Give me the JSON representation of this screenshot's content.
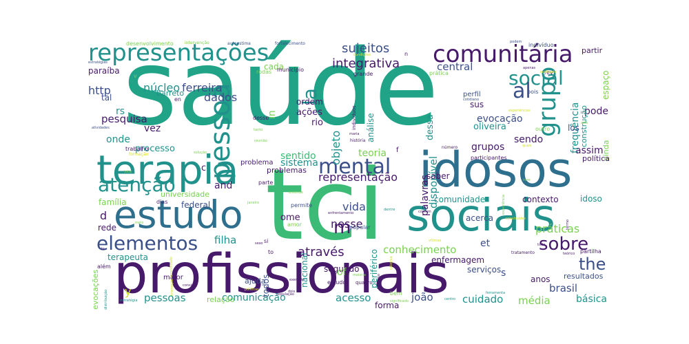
{
  "palette": {
    "dark_purple": "#46196a",
    "indigo": "#3b4f8a",
    "steel_blue": "#2f6f8e",
    "teal": "#21918c",
    "sea_green": "#20a386",
    "green": "#3bbb75",
    "lime": "#7ad151",
    "yellow": "#c8dd2a",
    "gold": "#d4e02a"
  },
  "words": [
    {
      "text": "saúde",
      "weight": 10,
      "color": "sea_green"
    },
    {
      "text": "tci",
      "weight": 9.5,
      "color": "green"
    },
    {
      "text": "profissionais",
      "weight": 8,
      "color": "dark_purple"
    },
    {
      "text": "idosos",
      "weight": 6,
      "color": "steel_blue"
    },
    {
      "text": "sociais",
      "weight": 5.5,
      "color": "teal"
    },
    {
      "text": "terapia",
      "weight": 5,
      "color": "teal"
    },
    {
      "text": "estudo",
      "weight": 5,
      "color": "steel_blue"
    },
    {
      "text": "representações",
      "weight": 3.5,
      "color": "teal"
    },
    {
      "text": "comunitária",
      "weight": 3.2,
      "color": "dark_purple"
    },
    {
      "text": "pessoa",
      "weight": 3,
      "color": "teal"
    },
    {
      "text": "mental",
      "weight": 2.8,
      "color": "indigo"
    },
    {
      "text": "atenção",
      "weight": 2.8,
      "color": "teal"
    },
    {
      "text": "elementos",
      "weight": 2.6,
      "color": "indigo"
    },
    {
      "text": "grupo",
      "weight": 2.5,
      "color": "teal"
    },
    {
      "text": "social",
      "weight": 2.4,
      "color": "teal"
    },
    {
      "text": "sobre",
      "weight": 2.3,
      "color": "dark_purple"
    },
    {
      "text": "al",
      "weight": 2.2,
      "color": "indigo"
    },
    {
      "text": "la",
      "weight": 2.2,
      "color": "teal"
    },
    {
      "text": "m",
      "weight": 2,
      "color": "dark_purple"
    },
    {
      "text": "the",
      "weight": 2,
      "color": "indigo"
    },
    {
      "text": "sujeitos",
      "weight": 1.6,
      "color": "indigo"
    },
    {
      "text": "integrativa",
      "weight": 1.6,
      "color": "dark_purple"
    },
    {
      "text": "núcleo",
      "weight": 1.5,
      "color": "teal"
    },
    {
      "text": "ferreira",
      "weight": 1.5,
      "color": "indigo"
    },
    {
      "text": "dados",
      "weight": 1.5,
      "color": "indigo"
    },
    {
      "text": "central",
      "weight": 1.4,
      "color": "indigo"
    },
    {
      "text": "objeto",
      "weight": 1.4,
      "color": "teal"
    },
    {
      "text": "disponível",
      "weight": 1.4,
      "color": "teal"
    },
    {
      "text": "representação",
      "weight": 1.4,
      "color": "dark_purple"
    },
    {
      "text": "and",
      "weight": 1.4,
      "color": "dark_purple"
    },
    {
      "text": "vida",
      "weight": 1.4,
      "color": "indigo"
    },
    {
      "text": "nesse",
      "weight": 1.4,
      "color": "dark_purple"
    },
    {
      "text": "práticas",
      "weight": 1.4,
      "color": "lime"
    },
    {
      "text": "conhecimento",
      "weight": 1.4,
      "color": "lime"
    },
    {
      "text": "através",
      "weight": 1.4,
      "color": "dark_purple"
    },
    {
      "text": "filha",
      "weight": 1.4,
      "color": "teal"
    },
    {
      "text": "pessoas",
      "weight": 1.3,
      "color": "teal"
    },
    {
      "text": "comunicação",
      "weight": 1.3,
      "color": "teal"
    },
    {
      "text": "acesso",
      "weight": 1.3,
      "color": "teal"
    },
    {
      "text": "cuidado",
      "weight": 1.3,
      "color": "teal"
    },
    {
      "text": "brasil",
      "weight": 1.3,
      "color": "indigo"
    },
    {
      "text": "média",
      "weight": 1.3,
      "color": "lime"
    },
    {
      "text": "básica",
      "weight": 1.3,
      "color": "teal"
    },
    {
      "text": "pesquisa",
      "weight": 1.3,
      "color": "dark_purple"
    },
    {
      "text": "vez",
      "weight": 1.3,
      "color": "dark_purple"
    },
    {
      "text": "onde",
      "weight": 1.2,
      "color": "teal"
    },
    {
      "text": "processo",
      "weight": 1.2,
      "color": "teal"
    },
    {
      "text": "sentido",
      "weight": 1.2,
      "color": "green"
    },
    {
      "text": "teoria",
      "weight": 1.2,
      "color": "lime"
    },
    {
      "text": "grupos",
      "weight": 1.2,
      "color": "dark_purple"
    },
    {
      "text": "sendo",
      "weight": 1.2,
      "color": "dark_purple"
    },
    {
      "text": "assim",
      "weight": 1.2,
      "color": "dark_purple"
    },
    {
      "text": "evocação",
      "weight": 1.2,
      "color": "indigo"
    },
    {
      "text": "oliveira",
      "weight": 1.2,
      "color": "teal"
    },
    {
      "text": "pode",
      "weight": 1.2,
      "color": "dark_purple"
    },
    {
      "text": "sistema",
      "weight": 1.2,
      "color": "teal"
    },
    {
      "text": "problemas",
      "weight": 1.1,
      "color": "dark_purple"
    },
    {
      "text": "comunidade",
      "weight": 1.2,
      "color": "teal"
    },
    {
      "text": "universidade",
      "weight": 1.1,
      "color": "lime"
    },
    {
      "text": "federal",
      "weight": 1.1,
      "color": "indigo"
    },
    {
      "text": "família",
      "weight": 1.1,
      "color": "lime"
    },
    {
      "text": "rede",
      "weight": 1.1,
      "color": "dark_purple"
    },
    {
      "text": "terapeuta",
      "weight": 1.1,
      "color": "teal"
    },
    {
      "text": "enfermagem",
      "weight": 1.1,
      "color": "dark_purple"
    },
    {
      "text": "serviços",
      "weight": 1.1,
      "color": "indigo"
    },
    {
      "text": "segundo",
      "weight": 1.1,
      "color": "dark_purple"
    },
    {
      "text": "joão",
      "weight": 1.1,
      "color": "indigo"
    },
    {
      "text": "anos",
      "weight": 1.1,
      "color": "dark_purple"
    },
    {
      "text": "resultados",
      "weight": 1.0,
      "color": "indigo"
    },
    {
      "text": "forma",
      "weight": 1.0,
      "color": "dark_purple"
    },
    {
      "text": "relação",
      "weight": 1.0,
      "color": "lime"
    },
    {
      "text": "acerca",
      "weight": 1.0,
      "color": "indigo"
    },
    {
      "text": "contexto",
      "weight": 1.0,
      "color": "dark_purple"
    },
    {
      "text": "idoso",
      "weight": 1.0,
      "color": "teal"
    },
    {
      "text": "ome",
      "weight": 1.0,
      "color": "dark_purple"
    },
    {
      "text": "frequência",
      "weight": 1.1,
      "color": "teal"
    },
    {
      "text": "construção",
      "weight": 1.0,
      "color": "teal"
    },
    {
      "text": "los",
      "weight": 1.0,
      "color": "indigo"
    },
    {
      "text": "espaço",
      "weight": 1.0,
      "color": "lime"
    },
    {
      "text": "ainda",
      "weight": 1.0,
      "color": "lime"
    },
    {
      "text": "política",
      "weight": 0.9,
      "color": "dark_purple"
    },
    {
      "text": "partir",
      "weight": 1.0,
      "color": "dark_purple"
    },
    {
      "text": "perfil",
      "weight": 0.9,
      "color": "indigo"
    },
    {
      "text": "sus",
      "weight": 1.0,
      "color": "dark_purple"
    },
    {
      "text": "dessa",
      "weight": 1.0,
      "color": "teal"
    },
    {
      "text": "análise",
      "weight": 1.0,
      "color": "teal"
    },
    {
      "text": "ações",
      "weight": 1.0,
      "color": "dark_purple"
    },
    {
      "text": "ordem",
      "weight": 1.0,
      "color": "dark_purple"
    },
    {
      "text": "rio",
      "weight": 1.0,
      "color": "dark_purple"
    },
    {
      "text": "in",
      "weight": 1.0,
      "color": "lime"
    },
    {
      "text": "rs",
      "weight": 1.0,
      "color": "teal"
    },
    {
      "text": "http",
      "weight": 1.1,
      "color": "indigo"
    },
    {
      "text": "tal",
      "weight": 1.0,
      "color": "indigo"
    },
    {
      "text": "barreto",
      "weight": 0.9,
      "color": "teal"
    },
    {
      "text": "paraíba",
      "weight": 0.9,
      "color": "dark_purple"
    },
    {
      "text": "cada",
      "weight": 0.9,
      "color": "lime"
    },
    {
      "text": "palavras",
      "weight": 1.1,
      "color": "dark_purple"
    },
    {
      "text": "saber",
      "weight": 1.0,
      "color": "dark_purple"
    },
    {
      "text": "nacional",
      "weight": 1.0,
      "color": "teal"
    },
    {
      "text": "periférico",
      "weight": 1.0,
      "color": "teal"
    },
    {
      "text": "of",
      "weight": 1.0,
      "color": "lime"
    },
    {
      "text": "s",
      "weight": 1.0,
      "color": "indigo"
    },
    {
      "text": "et",
      "weight": 1.0,
      "color": "indigo"
    },
    {
      "text": "todos",
      "weight": 0.9,
      "color": "indigo"
    },
    {
      "text": "ajuda",
      "weight": 0.8,
      "color": "indigo"
    },
    {
      "text": "maior",
      "weight": 0.8,
      "color": "dark_purple"
    },
    {
      "text": "y",
      "weight": 1.0,
      "color": "yellow"
    },
    {
      "text": "d",
      "weight": 1.0,
      "color": "dark_purple"
    },
    {
      "text": "c",
      "weight": 0.9,
      "color": "dark_purple"
    },
    {
      "text": "problema",
      "weight": 0.9,
      "color": "dark_purple"
    },
    {
      "text": "evocações",
      "weight": 0.8,
      "color": "lime"
    },
    {
      "text": "desenvolvimento",
      "weight": 0.7,
      "color": "lime"
    },
    {
      "text": "intervenção",
      "weight": 0.5,
      "color": "lime"
    },
    {
      "text": "autoestima",
      "weight": 0.5,
      "color": "indigo"
    },
    {
      "text": "fortalecimento",
      "weight": 0.5,
      "color": "indigo"
    },
    {
      "text": "podem",
      "weight": 0.4,
      "color": "indigo"
    },
    {
      "text": "indivíduo",
      "weight": 0.6,
      "color": "indigo"
    },
    {
      "text": "município",
      "weight": 0.5,
      "color": "dark_purple"
    },
    {
      "text": "grande",
      "weight": 0.5,
      "color": "dark_purple"
    },
    {
      "text": "prática",
      "weight": 0.5,
      "color": "lime"
    },
    {
      "text": "estratégias",
      "weight": 0.4,
      "color": "indigo"
    },
    {
      "text": "trabalho",
      "weight": 0.5,
      "color": "dark_purple"
    },
    {
      "text": "atividades",
      "weight": 0.4,
      "color": "indigo"
    },
    {
      "text": "formação",
      "weight": 0.4,
      "color": "gold"
    },
    {
      "text": "desse",
      "weight": 0.6,
      "color": "dark_purple"
    },
    {
      "text": "tanto",
      "weight": 0.4,
      "color": "lime"
    },
    {
      "text": "reunião",
      "weight": 0.4,
      "color": "lime"
    },
    {
      "text": "maria",
      "weight": 0.4,
      "color": "dark_purple"
    },
    {
      "text": "história",
      "weight": 0.5,
      "color": "dark_purple"
    },
    {
      "text": "indivíduos",
      "weight": 0.5,
      "color": "dark_purple"
    },
    {
      "text": "participantes",
      "weight": 0.6,
      "color": "dark_purple"
    },
    {
      "text": "número",
      "weight": 0.5,
      "color": "dark_purple"
    },
    {
      "text": "outro",
      "weight": 0.5,
      "color": "lime"
    },
    {
      "text": "arte",
      "weight": 0.4,
      "color": "lime"
    },
    {
      "text": "cotidiano",
      "weight": 0.4,
      "color": "indigo"
    },
    {
      "text": "pois",
      "weight": 0.5,
      "color": "indigo"
    },
    {
      "text": "rev",
      "weight": 0.5,
      "color": "dark_purple"
    },
    {
      "text": "total",
      "weight": 0.4,
      "color": "lime"
    },
    {
      "text": "dias",
      "weight": 0.5,
      "color": "dark_purple"
    },
    {
      "text": "parte",
      "weight": 0.5,
      "color": "dark_purple"
    },
    {
      "text": "janeiro",
      "weight": 0.4,
      "color": "lime"
    },
    {
      "text": "entende",
      "weight": 0.4,
      "color": "lime"
    },
    {
      "text": "permite",
      "weight": 0.5,
      "color": "indigo"
    },
    {
      "text": "enfrentamento",
      "weight": 0.4,
      "color": "dark_purple"
    },
    {
      "text": "popular",
      "weight": 0.5,
      "color": "indigo"
    },
    {
      "text": "comum",
      "weight": 0.4,
      "color": "dark_purple"
    },
    {
      "text": "dentre",
      "weight": 0.4,
      "color": "teal"
    },
    {
      "text": "amor",
      "weight": 0.5,
      "color": "lime"
    },
    {
      "text": "meio",
      "weight": 0.4,
      "color": "lime"
    },
    {
      "text": "sexo",
      "weight": 0.4,
      "color": "dark_purple"
    },
    {
      "text": "partilha",
      "weight": 0.6,
      "color": "dark_purple"
    },
    {
      "text": "tratamento",
      "weight": 0.5,
      "color": "dark_purple"
    },
    {
      "text": "teórico",
      "weight": 0.4,
      "color": "dark_purple"
    },
    {
      "text": "estudos",
      "weight": 0.5,
      "color": "dark_purple"
    },
    {
      "text": "exemplo",
      "weight": 0.4,
      "color": "dark_purple"
    },
    {
      "text": "quadro",
      "weight": 0.5,
      "color": "dark_purple"
    },
    {
      "text": "bem",
      "weight": 0.5,
      "color": "lime"
    },
    {
      "text": "significado",
      "weight": 0.4,
      "color": "lime"
    },
    {
      "text": "centro",
      "weight": 0.4,
      "color": "teal"
    },
    {
      "text": "ferramenta",
      "weight": 0.4,
      "color": "teal"
    },
    {
      "text": "população",
      "weight": 0.4,
      "color": "dark_purple"
    },
    {
      "text": "estratégia",
      "weight": 0.4,
      "color": "teal"
    },
    {
      "text": "distribuição",
      "weight": 0.4,
      "color": "teal"
    },
    {
      "text": "consiste",
      "weight": 0.4,
      "color": "dark_purple"
    },
    {
      "text": "além",
      "weight": 0.5,
      "color": "dark_purple"
    },
    {
      "text": "tc",
      "weight": 0.4,
      "color": "dark_purple"
    },
    {
      "text": "dois",
      "weight": 0.4,
      "color": "dark_purple"
    },
    {
      "text": "maioria",
      "weight": 0.4,
      "color": "lime"
    },
    {
      "text": "rodas",
      "weight": 0.5,
      "color": "lime"
    },
    {
      "text": "solução",
      "weight": 0.4,
      "color": "lime"
    },
    {
      "text": "experiência",
      "weight": 0.4,
      "color": "lime"
    },
    {
      "text": "livre",
      "weight": 0.4,
      "color": "lime"
    },
    {
      "text": "termo",
      "weight": 0.4,
      "color": "dark_purple"
    },
    {
      "text": "todo",
      "weight": 0.4,
      "color": "dark_purple"
    },
    {
      "text": "apenas",
      "weight": 0.4,
      "color": "dark_purple"
    },
    {
      "text": "realidade",
      "weight": 0.4,
      "color": "gold"
    },
    {
      "text": "condições",
      "weight": 0.4,
      "color": "gold"
    },
    {
      "text": "experiências",
      "weight": 0.4,
      "color": "gold"
    },
    {
      "text": "construídas",
      "weight": 0.4,
      "color": "gold"
    },
    {
      "text": "vítimas",
      "weight": 0.4,
      "color": "gold"
    },
    {
      "text": "políticas",
      "weight": 0.4,
      "color": "gold"
    },
    {
      "text": "aprendizado",
      "weight": 0.4,
      "color": "gold"
    },
    {
      "text": "promoção",
      "weight": 0.4,
      "color": "gold"
    },
    {
      "text": "coletiva",
      "weight": 0.4,
      "color": "gold"
    },
    {
      "text": "feminino",
      "weight": 0.4,
      "color": "dark_purple"
    },
    {
      "text": "si",
      "weight": 0.5,
      "color": "dark_purple"
    },
    {
      "text": "to",
      "weight": 0.5,
      "color": "dark_purple"
    },
    {
      "text": "en",
      "weight": 0.5,
      "color": "dark_purple"
    },
    {
      "text": "v",
      "weight": 0.5,
      "color": "lime"
    },
    {
      "text": "f",
      "weight": 0.6,
      "color": "dark_purple"
    },
    {
      "text": "n",
      "weight": 0.5,
      "color": "dark_purple"
    },
    {
      "text": "quais",
      "weight": 0.4,
      "color": "gold"
    }
  ]
}
